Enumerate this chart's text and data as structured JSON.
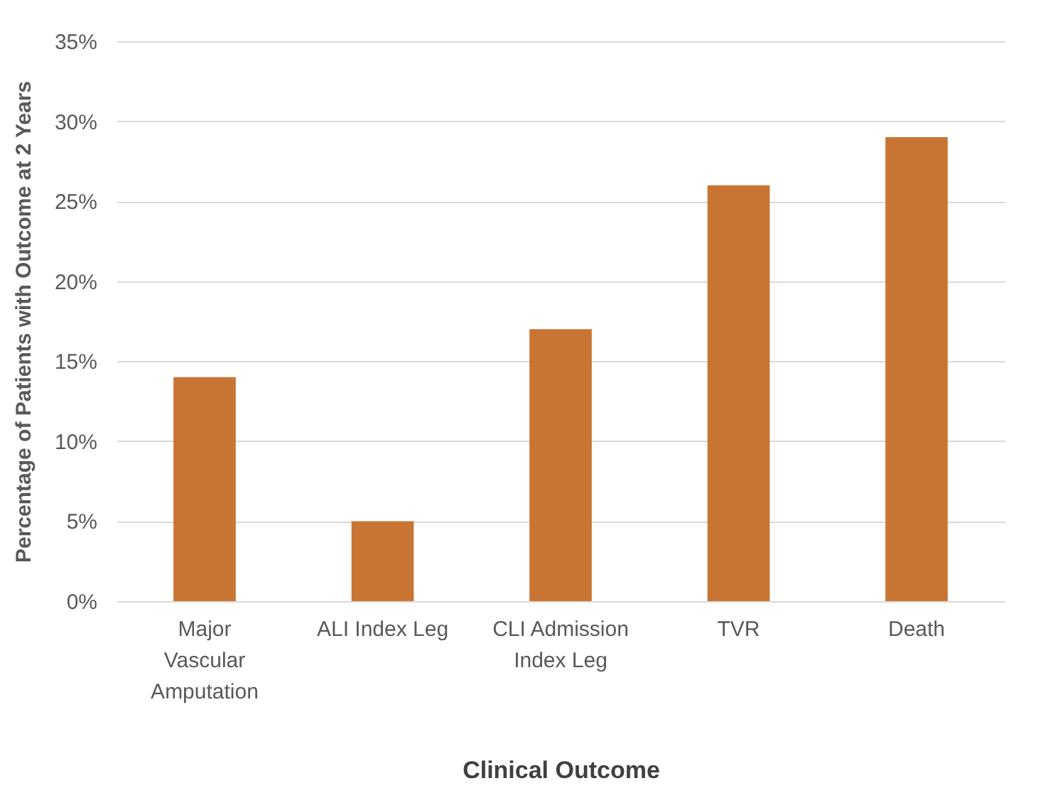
{
  "chart_data": {
    "type": "bar",
    "xlabel": "Clinical Outcome",
    "ylabel": "Percentage of Patients with Outcome at 2 Years",
    "categories": [
      "Major Vascular Amputation",
      "ALI Index Leg",
      "CLI Admission Index Leg",
      "TVR",
      "Death"
    ],
    "values": [
      14,
      5,
      17,
      26,
      29
    ],
    "color": "#c87533",
    "ylim": [
      0,
      35
    ],
    "yticks": [
      {
        "value": 0,
        "label": "0%"
      },
      {
        "value": 5,
        "label": "5%"
      },
      {
        "value": 10,
        "label": "10%"
      },
      {
        "value": 15,
        "label": "15%"
      },
      {
        "value": 20,
        "label": "20%"
      },
      {
        "value": 25,
        "label": "25%"
      },
      {
        "value": 30,
        "label": "30%"
      },
      {
        "value": 35,
        "label": "35%"
      }
    ],
    "grid": true
  }
}
